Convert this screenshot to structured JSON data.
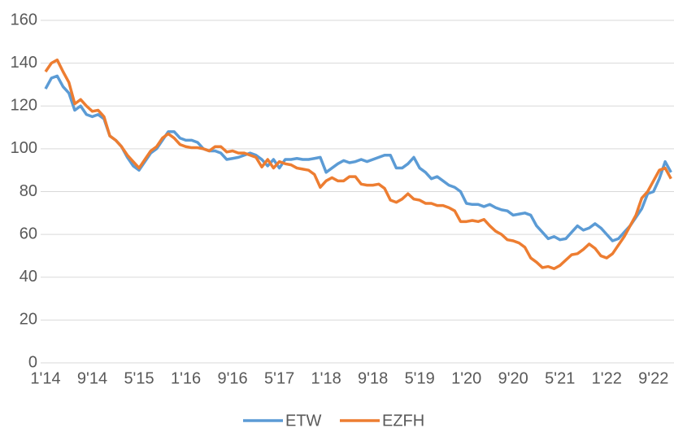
{
  "chart_data": {
    "type": "line",
    "categories": [
      "1'14",
      null,
      null,
      null,
      null,
      null,
      null,
      null,
      "9'14",
      null,
      null,
      null,
      null,
      null,
      null,
      null,
      "5'15",
      null,
      null,
      null,
      null,
      null,
      null,
      null,
      "1'16",
      null,
      null,
      null,
      null,
      null,
      null,
      null,
      "9'16",
      null,
      null,
      null,
      null,
      null,
      null,
      null,
      "5'17",
      null,
      null,
      null,
      null,
      null,
      null,
      null,
      "1'18",
      null,
      null,
      null,
      null,
      null,
      null,
      null,
      "9'18",
      null,
      null,
      null,
      null,
      null,
      null,
      null,
      "5'19",
      null,
      null,
      null,
      null,
      null,
      null,
      null,
      "1'20",
      null,
      null,
      null,
      null,
      null,
      null,
      null,
      "9'20",
      null,
      null,
      null,
      null,
      null,
      null,
      null,
      "5'21",
      null,
      null,
      null,
      null,
      null,
      null,
      null,
      "1'22",
      null,
      null,
      null,
      null,
      null,
      null,
      null,
      "9'22",
      null,
      null,
      null
    ],
    "series": [
      {
        "name": "ETW",
        "color": "#5b9bd5",
        "values": [
          128,
          133,
          134,
          129,
          126,
          118,
          120,
          116,
          115,
          116,
          114,
          106,
          104,
          101,
          96,
          92,
          90,
          94,
          98,
          100,
          104,
          108,
          108,
          105,
          104,
          104,
          103,
          100,
          99,
          99,
          98,
          95,
          95.5,
          96,
          97,
          98,
          97,
          95,
          92,
          95,
          91,
          95,
          95,
          95.5,
          95,
          95,
          95.5,
          96,
          89,
          91,
          93,
          94.5,
          93.5,
          94,
          95,
          94,
          95,
          96,
          97,
          97,
          91,
          91,
          93,
          96,
          91,
          89,
          86,
          87,
          85,
          83,
          82,
          80,
          74.5,
          74,
          74,
          73,
          74,
          72.5,
          71.5,
          71,
          69,
          69.5,
          70,
          69,
          64,
          61,
          58,
          59,
          57.5,
          58,
          61,
          64,
          62,
          63,
          65,
          63,
          60,
          57,
          58,
          61,
          64,
          68,
          72,
          79,
          80,
          86,
          94,
          89
        ]
      },
      {
        "name": "EZFH",
        "color": "#ed7d31",
        "values": [
          136,
          140,
          141.5,
          136,
          131,
          121,
          123,
          120,
          117.5,
          118,
          115,
          106,
          104,
          101,
          97,
          94,
          91,
          95,
          99,
          101,
          105,
          107,
          105,
          102,
          101,
          100.5,
          100.5,
          100,
          99,
          101,
          101,
          98.5,
          99,
          98,
          98,
          97,
          96,
          91.5,
          95,
          91,
          94,
          93,
          92.5,
          91,
          90.5,
          90,
          88,
          82,
          85,
          86.5,
          85,
          85,
          87,
          87,
          83.5,
          83,
          83,
          83.5,
          81.5,
          76,
          75,
          76.5,
          79,
          76.5,
          76,
          74.5,
          74.5,
          73.5,
          73.5,
          72.5,
          71,
          66,
          66,
          66.5,
          66,
          67,
          64,
          61.5,
          60,
          57.5,
          57,
          56,
          54,
          49,
          47,
          44.5,
          45,
          44,
          45.5,
          48,
          50.5,
          51,
          53,
          55.5,
          53.5,
          50,
          49,
          51,
          55,
          59,
          64,
          69,
          77,
          80,
          85,
          90,
          91,
          86
        ]
      }
    ],
    "ylim": [
      0,
      160
    ],
    "yticks": [
      0,
      20,
      40,
      60,
      80,
      100,
      120,
      140,
      160
    ],
    "grid": true
  }
}
